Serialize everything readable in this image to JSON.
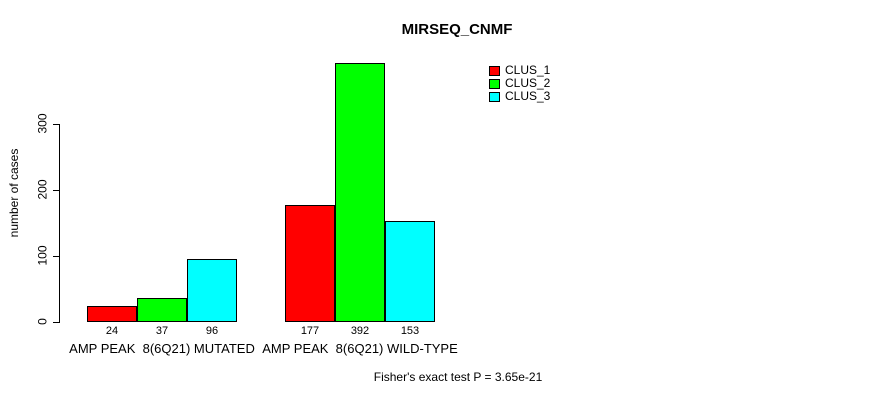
{
  "chart_data": {
    "type": "bar",
    "title": "MIRSEQ_CNMF",
    "ylabel": "number of cases",
    "xlabel": "",
    "categories": [
      "AMP PEAK  8(6Q21) MUTATED",
      "AMP PEAK  8(6Q21) WILD-TYPE"
    ],
    "series": [
      {
        "name": "CLUS_1",
        "color": "#FF0000",
        "values": [
          24,
          177
        ]
      },
      {
        "name": "CLUS_2",
        "color": "#00FF00",
        "values": [
          37,
          392
        ]
      },
      {
        "name": "CLUS_3",
        "color": "#00FFFF",
        "values": [
          96,
          153
        ]
      }
    ],
    "yticks": [
      0,
      100,
      200,
      300
    ],
    "ylim": [
      0,
      400
    ],
    "grid": false,
    "bar_value_labels_shown": true,
    "legend_position": "top-right-inside",
    "bar_border_color": "#000000",
    "background_color": "#FFFFFF"
  },
  "annotation": {
    "fisher_note": "Fisher's exact test P = 3.65e-21"
  }
}
